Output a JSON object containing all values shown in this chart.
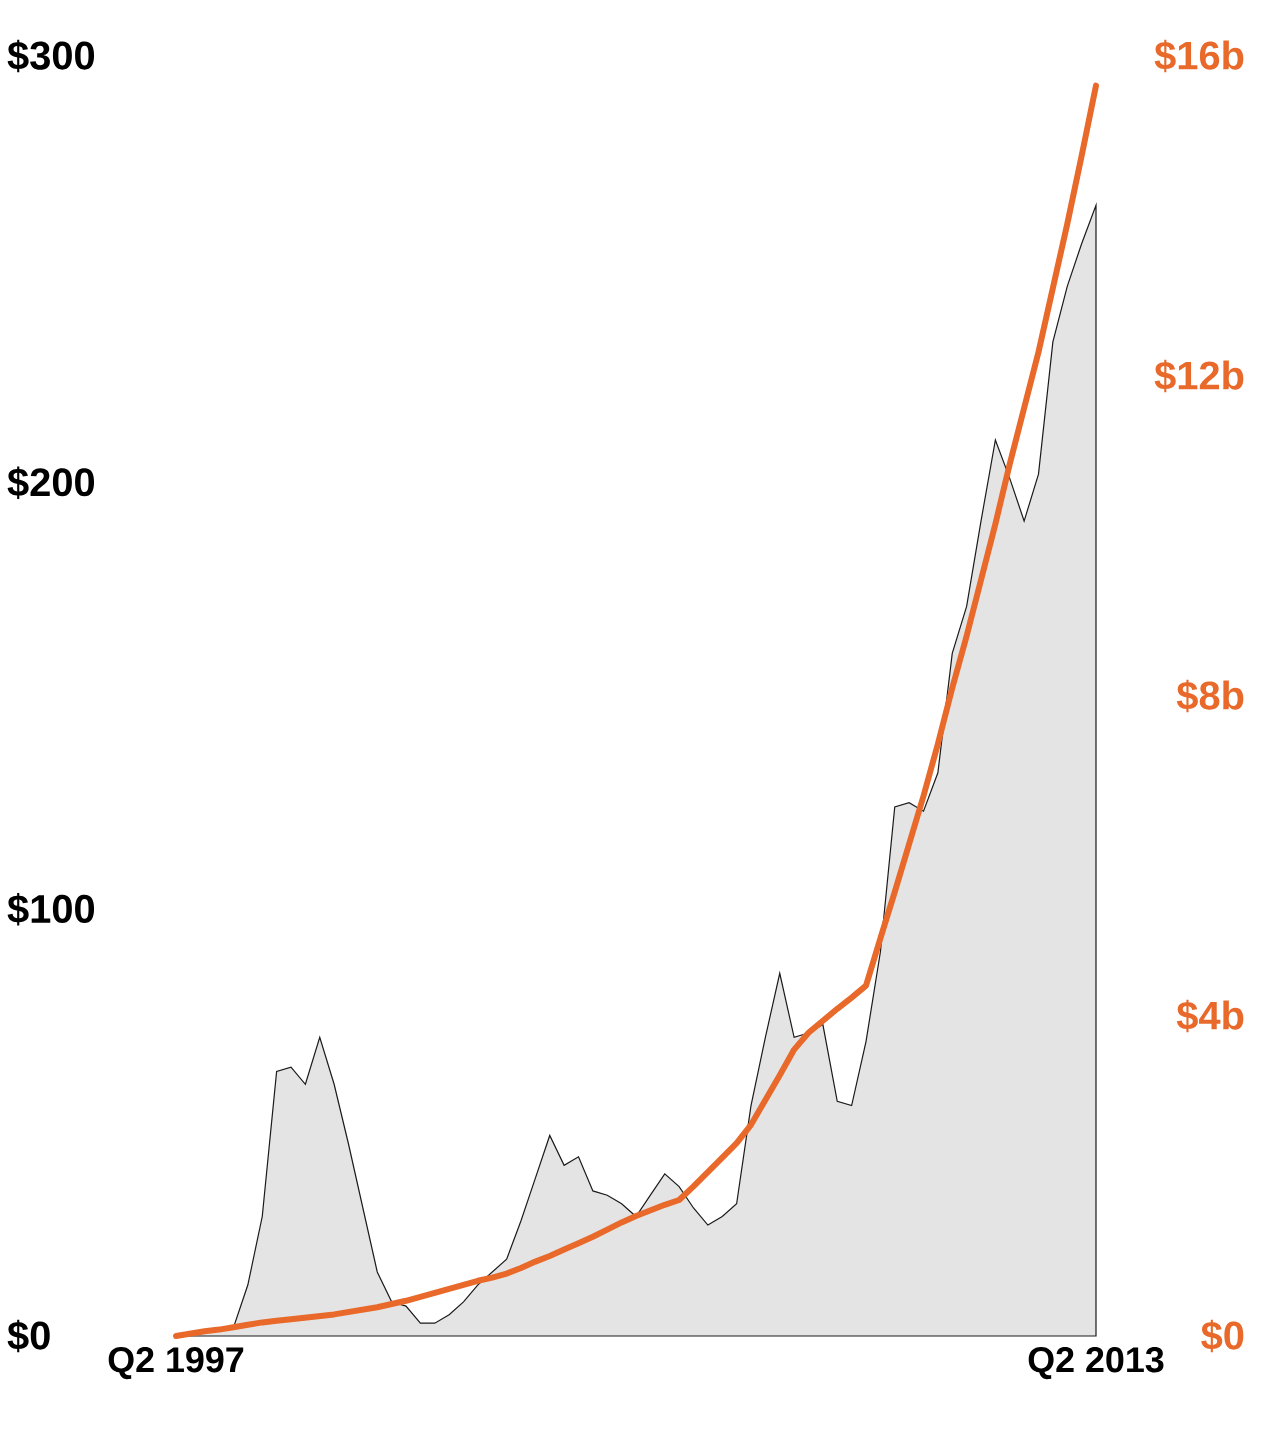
{
  "chart_data": {
    "type": "area",
    "categories": [
      "Q2 1997",
      null,
      null,
      null,
      null,
      null,
      null,
      null,
      null,
      null,
      null,
      null,
      null,
      null,
      null,
      null,
      null,
      null,
      null,
      null,
      null,
      null,
      null,
      null,
      null,
      null,
      null,
      null,
      null,
      null,
      null,
      null,
      null,
      null,
      null,
      null,
      null,
      null,
      null,
      null,
      null,
      null,
      null,
      null,
      null,
      null,
      null,
      null,
      null,
      null,
      null,
      null,
      null,
      null,
      null,
      null,
      null,
      null,
      null,
      null,
      null,
      null,
      null,
      null,
      "Q2 2013"
    ],
    "ylim": [
      0,
      300
    ],
    "yticks": [
      {
        "value": 0,
        "label": "$0"
      },
      {
        "value": 100,
        "label": "$100"
      },
      {
        "value": 200,
        "label": "$200"
      },
      {
        "value": 300,
        "label": "$300"
      }
    ],
    "y2lim": [
      0,
      16
    ],
    "y2ticks": [
      {
        "value": 0,
        "label": "$0"
      },
      {
        "value": 4,
        "label": "$4b"
      },
      {
        "value": 8,
        "label": "$8b"
      },
      {
        "value": 12,
        "label": "$12b"
      },
      {
        "value": 16,
        "label": "$16b"
      }
    ],
    "series": [
      {
        "color": "#1a1a1a",
        "values": [
          0,
          0.6,
          1.2,
          1.5,
          2,
          12,
          28,
          62,
          63,
          59,
          70,
          59,
          45,
          30,
          15,
          8,
          7,
          3,
          3,
          5,
          8,
          12,
          15,
          18,
          27,
          37,
          47,
          40,
          42,
          34,
          33,
          31,
          28,
          33,
          38,
          35,
          30,
          26,
          28,
          31,
          54,
          70,
          85,
          70,
          71,
          73,
          55,
          54,
          69,
          90,
          124,
          125,
          123,
          132,
          160,
          171,
          191,
          210,
          201,
          191,
          202,
          233,
          246,
          256,
          265
        ]
      },
      {
        "type": "line",
        "axis": "y2",
        "color": "#e8692a",
        "values": [
          0,
          0.03,
          0.06,
          0.08,
          0.11,
          0.14,
          0.17,
          0.19,
          0.21,
          0.23,
          0.25,
          0.27,
          0.3,
          0.33,
          0.36,
          0.4,
          0.44,
          0.49,
          0.54,
          0.59,
          0.64,
          0.69,
          0.73,
          0.78,
          0.85,
          0.93,
          1.0,
          1.08,
          1.16,
          1.24,
          1.33,
          1.42,
          1.5,
          1.57,
          1.64,
          1.7,
          1.87,
          2.05,
          2.23,
          2.41,
          2.64,
          2.95,
          3.26,
          3.58,
          3.79,
          3.94,
          4.09,
          4.23,
          4.38,
          4.97,
          5.55,
          6.15,
          6.75,
          7.4,
          8.1,
          8.75,
          9.45,
          10.15,
          10.9,
          11.6,
          12.3,
          13.1,
          13.9,
          14.75,
          15.63
        ]
      }
    ]
  }
}
